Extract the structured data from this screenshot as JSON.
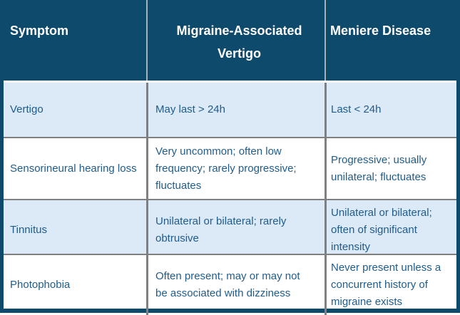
{
  "table": {
    "columns": [
      {
        "label": "Symptom"
      },
      {
        "label": "Migraine-Associated Vertigo"
      },
      {
        "label": "Meniere Disease"
      }
    ],
    "rows": [
      {
        "symptom": "Vertigo",
        "migraine_associated_vertigo": "May last > 24h",
        "meniere_disease": "Last < 24h"
      },
      {
        "symptom": "Sensorineural hearing loss",
        "migraine_associated_vertigo": "Very uncommon; often low frequency; rarely progressive; fluctuates",
        "meniere_disease": "Progressive; usually unilateral; fluctuates"
      },
      {
        "symptom": "Tinnitus",
        "migraine_associated_vertigo": "Unilateral or bilateral; rarely obtrusive",
        "meniere_disease": "Unilateral or bilateral; often of significant intensity"
      },
      {
        "symptom": "Photophobia",
        "migraine_associated_vertigo": "Often present; may or may not be associated with dizziness",
        "meniere_disease": "Never present unless a concurrent history of migraine exists"
      }
    ],
    "colors": {
      "header_bg": "#0E4A6C",
      "header_text": "#FFFFFF",
      "row_alt_bg": "#DCE9F6",
      "row_bg": "#FFFFFF",
      "body_text": "#1F5C8C",
      "grid_line": "#808080",
      "header_divider": "#A9B1B8",
      "frame": "#0E4A6C"
    }
  }
}
